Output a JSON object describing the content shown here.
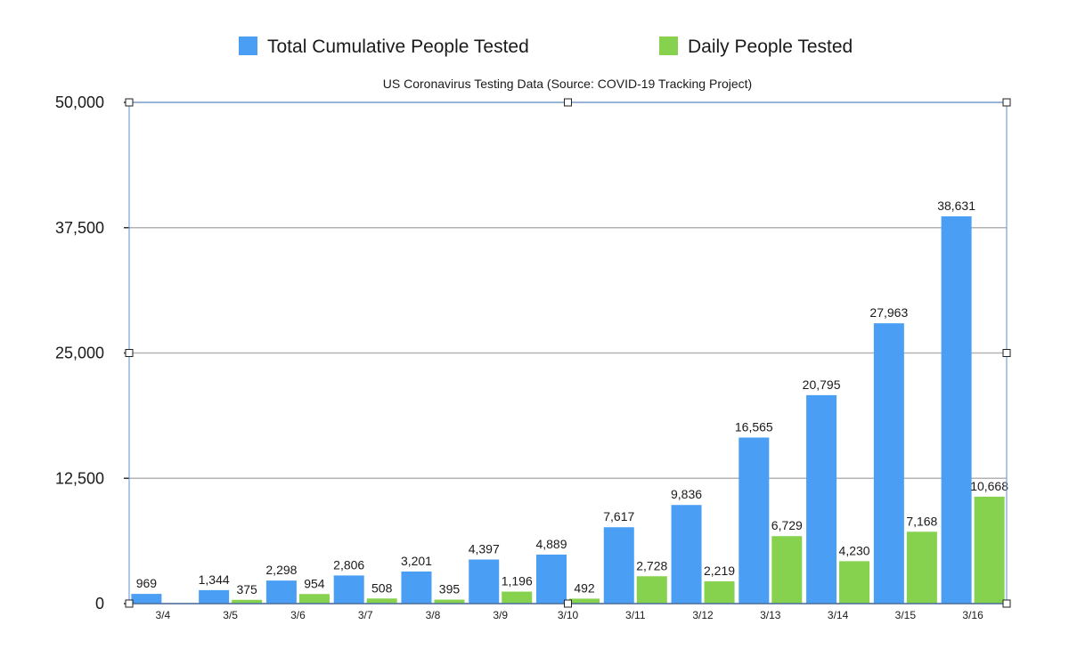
{
  "chart_data": {
    "type": "bar",
    "title": "US Coronavirus Testing Data (Source: COVID-19 Tracking Project)",
    "xlabel": "",
    "ylabel": "",
    "categories": [
      "3/4",
      "3/5",
      "3/6",
      "3/7",
      "3/8",
      "3/9",
      "3/10",
      "3/11",
      "3/12",
      "3/13",
      "3/14",
      "3/15",
      "3/16"
    ],
    "series": [
      {
        "name": "Total Cumulative People Tested",
        "color": "#4a9ff5",
        "values": [
          969,
          1344,
          2298,
          2806,
          3201,
          4397,
          4889,
          7617,
          9836,
          16565,
          20795,
          27963,
          38631
        ],
        "labels": [
          "969",
          "1,344",
          "2,298",
          "2,806",
          "3,201",
          "4,397",
          "4,889",
          "7,617",
          "9,836",
          "16,565",
          "20,795",
          "27,963",
          "38,631"
        ]
      },
      {
        "name": "Daily People Tested",
        "color": "#86d14e",
        "values": [
          0,
          375,
          954,
          508,
          395,
          1196,
          492,
          2728,
          2219,
          6729,
          4230,
          7168,
          10668
        ],
        "labels": [
          "",
          "375",
          "954",
          "508",
          "395",
          "1,196",
          "492",
          "2,728",
          "2,219",
          "6,729",
          "4,230",
          "7,168",
          "10,668"
        ]
      }
    ],
    "ylim": [
      0,
      50000
    ],
    "yticks": [
      0,
      12500,
      25000,
      37500,
      50000
    ],
    "ytick_labels": [
      "0",
      "12,500",
      "25,000",
      "37,500",
      "50,000"
    ],
    "grid": true,
    "legend_position": "top"
  }
}
